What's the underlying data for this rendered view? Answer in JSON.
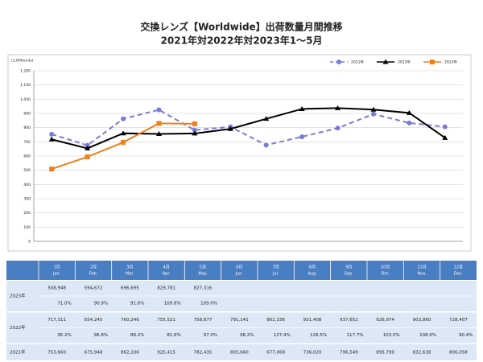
{
  "chart_data": {
    "type": "line",
    "title": "交換レンズ【Worldwide】出荷数量月間推移",
    "subtitle": "2021年対2022年対2023年1～5月",
    "y_label": "(1,000units)",
    "categories": [
      null,
      null,
      null,
      null,
      null,
      null,
      null,
      null,
      null,
      null,
      null,
      null
    ],
    "ylim": [
      0,
      1200
    ],
    "yticks": [
      0,
      100,
      200,
      300,
      400,
      500,
      600,
      700,
      800,
      900,
      {
        "value": 1000,
        "label": "1,000"
      },
      {
        "value": 1100,
        "label": "1,100"
      },
      {
        "value": 1200,
        "label": "1,200"
      }
    ],
    "grid": true,
    "legend": "top-right",
    "series": [
      {
        "name": "2021年",
        "color": "#7b7bd6",
        "dash": true,
        "marker": "circle",
        "values": [
          753.66,
          675.948,
          862.106,
          925.415,
          782.435,
          805.66,
          677.068,
          736.02,
          796.549,
          895.79,
          832.638,
          806.058
        ]
      },
      {
        "name": "2022年",
        "color": "#000000",
        "dash": false,
        "marker": "triangle",
        "values": [
          717.311,
          654.245,
          760.246,
          755.521,
          758.877,
          791.141,
          862.336,
          931.408,
          937.652,
          926.974,
          903.86,
          728.407
        ]
      },
      {
        "name": "2023年",
        "color": "#f07f1a",
        "dash": false,
        "marker": "square",
        "values": [
          508.948,
          594.672,
          696.695,
          829.781,
          827.316,
          null,
          null,
          null,
          null,
          null,
          null,
          null
        ]
      }
    ]
  },
  "table": {
    "header": [
      {
        "ja": "1月",
        "en": "Jan."
      },
      {
        "ja": "2月",
        "en": "Feb."
      },
      {
        "ja": "3月",
        "en": "Mar."
      },
      {
        "ja": "4月",
        "en": "Apr."
      },
      {
        "ja": "5月",
        "en": "May."
      },
      {
        "ja": "6月",
        "en": "Jun."
      },
      {
        "ja": "7月",
        "en": "Jul."
      },
      {
        "ja": "8月",
        "en": "Aug."
      },
      {
        "ja": "9月",
        "en": "Sep."
      },
      {
        "ja": "10月",
        "en": "Oct."
      },
      {
        "ja": "11月",
        "en": "Nov."
      },
      {
        "ja": "12月",
        "en": "Dec."
      }
    ],
    "rows": [
      {
        "label": "2023年",
        "units": [
          "508,948",
          "594,672",
          "696,695",
          "829,781",
          "827,316",
          null,
          null,
          null,
          null,
          null,
          null,
          null
        ],
        "ratio": [
          "71.0%",
          "90.9%",
          "91.6%",
          "109.8%",
          "109.0%",
          null,
          null,
          null,
          null,
          null,
          null,
          null
        ]
      },
      {
        "label": "2022年",
        "units": [
          "717,311",
          "654,245",
          "760,246",
          "755,521",
          "758,877",
          "791,141",
          "862,336",
          "931,408",
          "937,652",
          "926,974",
          "903,860",
          "728,407"
        ],
        "ratio": [
          "95.2%",
          "96.8%",
          "88.2%",
          "81.6%",
          "97.0%",
          "98.2%",
          "127.4%",
          "126.5%",
          "117.7%",
          "103.5%",
          "108.6%",
          "90.4%"
        ]
      },
      {
        "label": "2021年",
        "units": [
          "753,660",
          "675,948",
          "862,106",
          "925,415",
          "782,435",
          "805,660",
          "677,068",
          "736,020",
          "796,549",
          "895,790",
          "832,638",
          "806,058"
        ]
      }
    ]
  }
}
